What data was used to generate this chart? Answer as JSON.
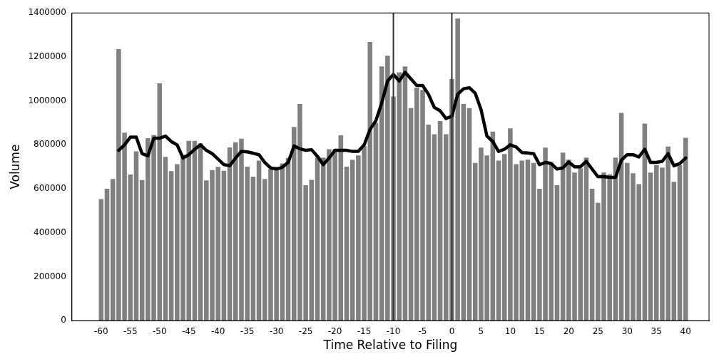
{
  "chart_data": {
    "type": "bar",
    "xlabel": "Time Relative to Filing",
    "ylabel": "Volume",
    "x": [
      -60,
      -59,
      -58,
      -57,
      -56,
      -55,
      -54,
      -53,
      -52,
      -51,
      -50,
      -49,
      -48,
      -47,
      -46,
      -45,
      -44,
      -43,
      -42,
      -41,
      -40,
      -39,
      -38,
      -37,
      -36,
      -35,
      -34,
      -33,
      -32,
      -31,
      -30,
      -29,
      -28,
      -27,
      -26,
      -25,
      -24,
      -23,
      -22,
      -21,
      -20,
      -19,
      -18,
      -17,
      -16,
      -15,
      -14,
      -13,
      -12,
      -11,
      -10,
      -9,
      -8,
      -7,
      -6,
      -5,
      -4,
      -3,
      -2,
      -1,
      0,
      1,
      2,
      3,
      4,
      5,
      6,
      7,
      8,
      9,
      10,
      11,
      12,
      13,
      14,
      15,
      16,
      17,
      18,
      19,
      20,
      21,
      22,
      23,
      24,
      25,
      26,
      27,
      28,
      29,
      30,
      31,
      32,
      33,
      34,
      35,
      36,
      37,
      38,
      39,
      40
    ],
    "series": [
      {
        "color": "#808080",
        "values": [
          553000,
          600000,
          645000,
          1235000,
          855000,
          665000,
          770000,
          640000,
          830000,
          845000,
          1080000,
          745000,
          680000,
          712000,
          755000,
          818000,
          818000,
          807000,
          638000,
          685000,
          700000,
          682000,
          788000,
          812000,
          828000,
          701000,
          655000,
          728000,
          645000,
          690000,
          700000,
          715000,
          740000,
          881000,
          986000,
          616000,
          641000,
          742000,
          742000,
          780000,
          780000,
          843000,
          701000,
          732000,
          752000,
          795000,
          1268000,
          900000,
          1157000,
          1205000,
          1020000,
          1130000,
          1157000,
          967000,
          1060000,
          1050000,
          892000,
          848000,
          908000,
          848000,
          1099000,
          1375000,
          986000,
          967000,
          718000,
          787000,
          752000,
          860000,
          728000,
          758000,
          875000,
          712000,
          728000,
          733000,
          718000,
          600000,
          787000,
          718000,
          616000,
          765000,
          733000,
          674000,
          693000,
          742000,
          600000,
          536000,
          674000,
          666000,
          742000,
          945000,
          718000,
          671000,
          621000,
          897000,
          674000,
          708000,
          697000,
          792000,
          632000,
          708000,
          832000
        ]
      },
      {
        "type": "line",
        "color": "#000000",
        "x": [
          -57,
          -56,
          -55,
          -54,
          -53,
          -52,
          -51,
          -50,
          -49,
          -48,
          -47,
          -46,
          -45,
          -44,
          -43,
          -42,
          -41,
          -40,
          -39,
          -38,
          -37,
          -36,
          -35,
          -34,
          -33,
          -32,
          -31,
          -30,
          -29,
          -28,
          -27,
          -26,
          -25,
          -24,
          -23,
          -22,
          -21,
          -20,
          -19,
          -18,
          -17,
          -16,
          -15,
          -14,
          -13,
          -12,
          -11,
          -10,
          -9,
          -8,
          -7,
          -6,
          -5,
          -4,
          -3,
          -2,
          -1,
          0,
          1,
          2,
          3,
          4,
          5,
          6,
          7,
          8,
          9,
          10,
          11,
          12,
          13,
          14,
          15,
          16,
          17,
          18,
          19,
          20,
          21,
          22,
          23,
          24,
          25,
          26,
          27,
          28,
          29,
          30,
          31,
          32,
          33,
          34,
          35,
          36,
          37,
          38,
          39,
          40
        ],
        "values": [
          775000,
          800000,
          835000,
          835000,
          760000,
          750000,
          830000,
          830000,
          840000,
          815000,
          800000,
          740000,
          755000,
          780000,
          800000,
          775000,
          760000,
          735000,
          710000,
          705000,
          740000,
          770000,
          768000,
          762000,
          755000,
          720000,
          695000,
          690000,
          698000,
          720000,
          795000,
          782000,
          775000,
          778000,
          748000,
          710000,
          740000,
          775000,
          775000,
          775000,
          770000,
          770000,
          800000,
          870000,
          910000,
          990000,
          1090000,
          1120000,
          1090000,
          1130000,
          1100000,
          1070000,
          1070000,
          1030000,
          970000,
          955000,
          920000,
          930000,
          1030000,
          1055000,
          1060000,
          1035000,
          960000,
          840000,
          815000,
          770000,
          780000,
          800000,
          790000,
          765000,
          763000,
          760000,
          710000,
          720000,
          715000,
          690000,
          695000,
          722000,
          700000,
          700000,
          725000,
          690000,
          655000,
          655000,
          652000,
          652000,
          730000,
          755000,
          755000,
          745000,
          780000,
          720000,
          720000,
          725000,
          760000,
          705000,
          715000,
          740000
        ]
      }
    ],
    "xlim": [
      -65,
      44
    ],
    "xticks": [
      -60,
      -55,
      -50,
      -45,
      -40,
      -35,
      -30,
      -25,
      -20,
      -15,
      -10,
      -5,
      0,
      5,
      10,
      15,
      20,
      25,
      30,
      35,
      40
    ],
    "ylim": [
      0,
      1400000
    ],
    "yticks": [
      0,
      200000,
      400000,
      600000,
      800000,
      1000000,
      1200000,
      1400000
    ],
    "ref_lines": [
      {
        "axis": "x",
        "value": -10,
        "color": "#333333"
      },
      {
        "axis": "x",
        "value": 0,
        "color": "#333333"
      }
    ],
    "grid": false,
    "legend": false,
    "marker": "none",
    "line_style": "solid"
  }
}
